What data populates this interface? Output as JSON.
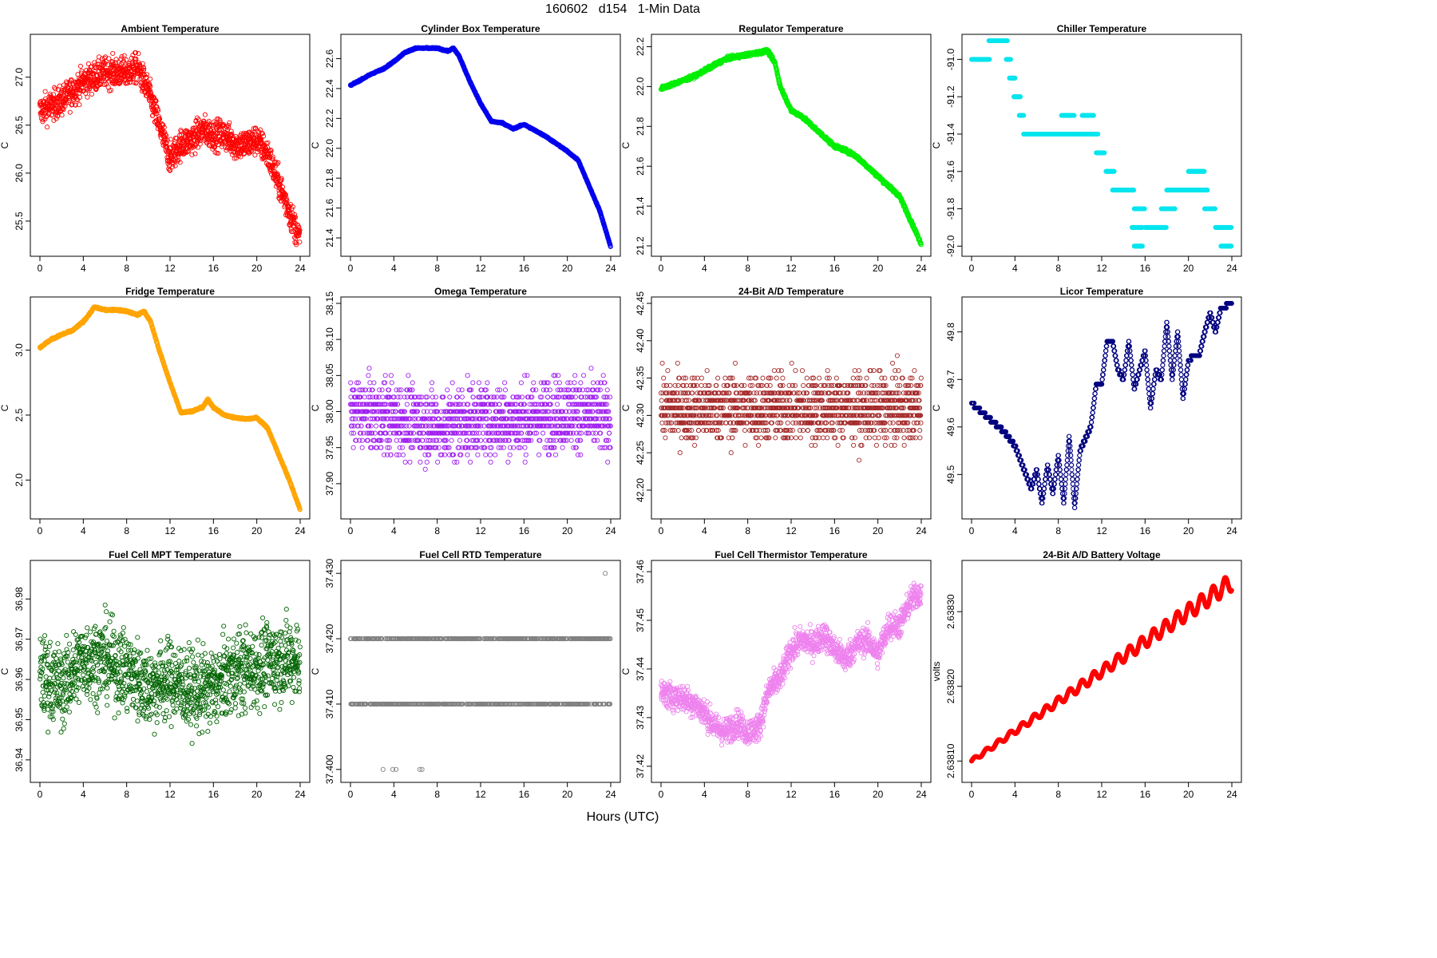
{
  "title": "160602   d154   1-Min Data",
  "xlabel": "Hours (UTC)",
  "chart_data": [
    {
      "id": "ambient",
      "type": "scatter",
      "title": "Ambient Temperature",
      "ylabel": "C",
      "color": "#ff0000",
      "xlim": [
        0,
        24
      ],
      "ylim": [
        25.2,
        27.38
      ],
      "xticks": [
        "0",
        "4",
        "8",
        "12",
        "16",
        "20",
        "24"
      ],
      "yticks": [
        "25.5",
        "26.0",
        "26.5",
        "27.0"
      ],
      "points_per_hour": 60,
      "noise": 0.14,
      "trend": [
        [
          0,
          26.65
        ],
        [
          2,
          26.75
        ],
        [
          4,
          26.95
        ],
        [
          6,
          27.05
        ],
        [
          8,
          27.05
        ],
        [
          9,
          27.1
        ],
        [
          10,
          26.85
        ],
        [
          11,
          26.5
        ],
        [
          12,
          26.15
        ],
        [
          13,
          26.3
        ],
        [
          14,
          26.35
        ],
        [
          15,
          26.45
        ],
        [
          16,
          26.4
        ],
        [
          17,
          26.4
        ],
        [
          18,
          26.3
        ],
        [
          19,
          26.3
        ],
        [
          20,
          26.35
        ],
        [
          21,
          26.2
        ],
        [
          22,
          25.9
        ],
        [
          23,
          25.6
        ],
        [
          24,
          25.3
        ]
      ]
    },
    {
      "id": "cylinder",
      "type": "scatter",
      "title": "Cylinder Box Temperature",
      "ylabel": "C",
      "color": "#0000ee",
      "xlim": [
        0,
        24
      ],
      "ylim": [
        21.32,
        22.72
      ],
      "xticks": [
        "0",
        "4",
        "8",
        "12",
        "16",
        "20",
        "24"
      ],
      "yticks": [
        "21.4",
        "21.6",
        "21.8",
        "22.0",
        "22.2",
        "22.4",
        "22.6"
      ],
      "points_per_hour": 60,
      "noise": 0.004,
      "trend": [
        [
          0,
          22.42
        ],
        [
          1,
          22.46
        ],
        [
          2,
          22.5
        ],
        [
          3,
          22.53
        ],
        [
          4,
          22.58
        ],
        [
          5,
          22.64
        ],
        [
          6,
          22.67
        ],
        [
          7,
          22.67
        ],
        [
          8,
          22.67
        ],
        [
          9,
          22.65
        ],
        [
          9.5,
          22.67
        ],
        [
          10,
          22.62
        ],
        [
          11,
          22.45
        ],
        [
          12,
          22.3
        ],
        [
          13,
          22.18
        ],
        [
          14,
          22.17
        ],
        [
          15,
          22.13
        ],
        [
          16,
          22.16
        ],
        [
          17,
          22.12
        ],
        [
          18,
          22.08
        ],
        [
          19,
          22.03
        ],
        [
          20,
          21.98
        ],
        [
          21,
          21.92
        ],
        [
          22,
          21.75
        ],
        [
          23,
          21.58
        ],
        [
          24,
          21.34
        ]
      ]
    },
    {
      "id": "regulator",
      "type": "scatter",
      "title": "Regulator Temperature",
      "ylabel": "C",
      "color": "#00ee00",
      "xlim": [
        0,
        24
      ],
      "ylim": [
        21.18,
        22.23
      ],
      "xticks": [
        "0",
        "4",
        "8",
        "12",
        "16",
        "20",
        "24"
      ],
      "yticks": [
        "21.2",
        "21.4",
        "21.6",
        "21.8",
        "22.0",
        "22.2"
      ],
      "points_per_hour": 60,
      "noise": 0.008,
      "trend": [
        [
          0,
          21.99
        ],
        [
          1,
          22.01
        ],
        [
          2,
          22.03
        ],
        [
          3,
          22.05
        ],
        [
          4,
          22.08
        ],
        [
          5,
          22.11
        ],
        [
          6,
          22.14
        ],
        [
          7,
          22.15
        ],
        [
          8,
          22.16
        ],
        [
          9,
          22.17
        ],
        [
          9.8,
          22.18
        ],
        [
          10.5,
          22.12
        ],
        [
          11,
          22.0
        ],
        [
          12,
          21.88
        ],
        [
          13,
          21.85
        ],
        [
          14,
          21.8
        ],
        [
          15,
          21.75
        ],
        [
          16,
          21.7
        ],
        [
          17,
          21.68
        ],
        [
          18,
          21.65
        ],
        [
          19,
          21.6
        ],
        [
          20,
          21.55
        ],
        [
          21,
          21.5
        ],
        [
          22,
          21.45
        ],
        [
          23,
          21.33
        ],
        [
          24,
          21.21
        ]
      ]
    },
    {
      "id": "chiller",
      "type": "steps",
      "title": "Chiller Temperature",
      "ylabel": "C",
      "color": "#00e5ee",
      "xlim": [
        0,
        24
      ],
      "ylim": [
        -92.02,
        -90.9
      ],
      "xticks": [
        "0",
        "4",
        "8",
        "12",
        "16",
        "20",
        "24"
      ],
      "yticks": [
        "-91.0",
        "-91.2",
        "-91.4",
        "-91.6",
        "-91.8",
        "-92.0"
      ],
      "segments": [
        [
          0,
          1.7,
          -91.0
        ],
        [
          1.6,
          3.3,
          -90.9
        ],
        [
          3.2,
          3.6,
          -91.0
        ],
        [
          3.5,
          4.0,
          -91.1
        ],
        [
          3.9,
          4.5,
          -91.2
        ],
        [
          4.4,
          4.8,
          -91.3
        ],
        [
          4.8,
          11.7,
          -91.4
        ],
        [
          8.3,
          9.5,
          -91.3
        ],
        [
          10.2,
          11.3,
          -91.3
        ],
        [
          11.5,
          12.3,
          -91.5
        ],
        [
          12.4,
          13.2,
          -91.6
        ],
        [
          13.0,
          15.0,
          -91.7
        ],
        [
          15.0,
          16.0,
          -91.8
        ],
        [
          14.8,
          15.8,
          -91.9
        ],
        [
          16.0,
          18.0,
          -91.9
        ],
        [
          17.5,
          18.8,
          -91.8
        ],
        [
          18.0,
          21.8,
          -91.7
        ],
        [
          20.0,
          21.5,
          -91.6
        ],
        [
          21.5,
          22.5,
          -91.8
        ],
        [
          22.5,
          24.0,
          -91.9
        ],
        [
          23.0,
          24.0,
          -92.0
        ],
        [
          15.0,
          15.8,
          -92.0
        ]
      ]
    },
    {
      "id": "fridge",
      "type": "scatter",
      "title": "Fridge Temperature",
      "ylabel": "C",
      "color": "#ffa500",
      "xlim": [
        0,
        24
      ],
      "ylim": [
        1.75,
        3.36
      ],
      "xticks": [
        "0",
        "4",
        "8",
        "12",
        "16",
        "20",
        "24"
      ],
      "yticks": [
        "2.0",
        "2.5",
        "3.0"
      ],
      "points_per_hour": 60,
      "noise": 0.006,
      "trend": [
        [
          0,
          3.02
        ],
        [
          1,
          3.08
        ],
        [
          2,
          3.12
        ],
        [
          3,
          3.15
        ],
        [
          4,
          3.22
        ],
        [
          4.5,
          3.27
        ],
        [
          5,
          3.33
        ],
        [
          6,
          3.31
        ],
        [
          7,
          3.31
        ],
        [
          8,
          3.3
        ],
        [
          9,
          3.27
        ],
        [
          9.6,
          3.3
        ],
        [
          10.2,
          3.22
        ],
        [
          11,
          3.0
        ],
        [
          12,
          2.75
        ],
        [
          13,
          2.52
        ],
        [
          14,
          2.53
        ],
        [
          15,
          2.56
        ],
        [
          15.5,
          2.62
        ],
        [
          16,
          2.56
        ],
        [
          17,
          2.5
        ],
        [
          18,
          2.48
        ],
        [
          19,
          2.47
        ],
        [
          20,
          2.48
        ],
        [
          21,
          2.4
        ],
        [
          22,
          2.2
        ],
        [
          23,
          2.0
        ],
        [
          24,
          1.77
        ]
      ]
    },
    {
      "id": "omega",
      "type": "quantized",
      "title": "Omega Temperature",
      "ylabel": "C",
      "color": "#a020f0",
      "xlim": [
        0,
        24
      ],
      "ylim": [
        37.86,
        38.15
      ],
      "xticks": [
        "0",
        "4",
        "8",
        "12",
        "16",
        "20",
        "24"
      ],
      "yticks": [
        "37.90",
        "37.95",
        "38.00",
        "38.05",
        "38.10",
        "38.15"
      ],
      "points_per_hour": 60,
      "step": 0.01,
      "noise": 0.045,
      "trend": [
        [
          0,
          38.0
        ],
        [
          4,
          37.99
        ],
        [
          8,
          37.98
        ],
        [
          12,
          37.99
        ],
        [
          16,
          37.99
        ],
        [
          20,
          38.0
        ],
        [
          24,
          37.99
        ]
      ]
    },
    {
      "id": "ad24",
      "type": "quantized",
      "title": "24-Bit A/D Temperature",
      "ylabel": "C",
      "color": "#a52a2a",
      "xlim": [
        0,
        24
      ],
      "ylim": [
        42.17,
        42.45
      ],
      "xticks": [
        "0",
        "4",
        "8",
        "12",
        "16",
        "20",
        "24"
      ],
      "yticks": [
        "42.20",
        "42.25",
        "42.30",
        "42.35",
        "42.40",
        "42.45"
      ],
      "points_per_hour": 60,
      "step": 0.01,
      "noise": 0.04,
      "trend": [
        [
          0,
          42.31
        ],
        [
          12,
          42.31
        ],
        [
          24,
          42.31
        ]
      ]
    },
    {
      "id": "licor",
      "type": "quantized",
      "title": "Licor Temperature",
      "ylabel": "C",
      "color": "#000080",
      "xlim": [
        0,
        24
      ],
      "ylim": [
        49.42,
        49.86
      ],
      "xticks": [
        "0",
        "4",
        "8",
        "12",
        "16",
        "20",
        "24"
      ],
      "yticks": [
        "49.5",
        "49.6",
        "49.7",
        "49.8"
      ],
      "points_per_hour": 60,
      "step": 0.01,
      "noise": 0.0,
      "trend": [
        [
          0,
          49.65
        ],
        [
          1,
          49.63
        ],
        [
          2,
          49.61
        ],
        [
          3,
          49.59
        ],
        [
          4,
          49.56
        ],
        [
          5,
          49.5
        ],
        [
          5.5,
          49.47
        ],
        [
          6,
          49.51
        ],
        [
          6.5,
          49.44
        ],
        [
          7,
          49.52
        ],
        [
          7.5,
          49.46
        ],
        [
          8,
          49.54
        ],
        [
          8.5,
          49.44
        ],
        [
          9,
          49.58
        ],
        [
          9.5,
          49.43
        ],
        [
          10,
          49.55
        ],
        [
          11,
          49.6
        ],
        [
          11.5,
          49.69
        ],
        [
          12,
          49.69
        ],
        [
          12.5,
          49.78
        ],
        [
          13,
          49.78
        ],
        [
          13.5,
          49.72
        ],
        [
          14,
          49.7
        ],
        [
          14.5,
          49.78
        ],
        [
          15,
          49.68
        ],
        [
          16,
          49.76
        ],
        [
          16.5,
          49.64
        ],
        [
          17,
          49.72
        ],
        [
          17.5,
          49.7
        ],
        [
          18,
          49.82
        ],
        [
          18.5,
          49.7
        ],
        [
          19,
          49.8
        ],
        [
          19.5,
          49.66
        ],
        [
          20,
          49.74
        ],
        [
          20.5,
          49.75
        ],
        [
          21,
          49.75
        ],
        [
          21.5,
          49.8
        ],
        [
          22,
          49.84
        ],
        [
          22.5,
          49.8
        ],
        [
          23,
          49.85
        ],
        [
          24,
          49.86
        ]
      ]
    },
    {
      "id": "fc-mpt",
      "type": "scatter",
      "title": "Fuel Cell MPT Temperature",
      "ylabel": "C",
      "color": "#006400",
      "xlim": [
        0,
        24
      ],
      "ylim": [
        36.936,
        36.988
      ],
      "xticks": [
        "0",
        "4",
        "8",
        "12",
        "16",
        "20",
        "24"
      ],
      "yticks": [
        "36.94",
        "36.95",
        "36.96",
        "36.97",
        "36.98"
      ],
      "points_per_hour": 60,
      "noise": 0.009,
      "trend": [
        [
          0,
          36.961
        ],
        [
          2,
          36.958
        ],
        [
          4,
          36.965
        ],
        [
          6,
          36.965
        ],
        [
          8,
          36.962
        ],
        [
          10,
          36.958
        ],
        [
          12,
          36.96
        ],
        [
          14,
          36.957
        ],
        [
          16,
          36.958
        ],
        [
          18,
          36.962
        ],
        [
          20,
          36.963
        ],
        [
          22,
          36.965
        ],
        [
          24,
          36.965
        ]
      ]
    },
    {
      "id": "fc-rtd",
      "type": "levels",
      "title": "Fuel Cell RTD Temperature",
      "ylabel": "C",
      "color": "#808080",
      "xlim": [
        0,
        24
      ],
      "ylim": [
        37.399,
        37.431
      ],
      "xticks": [
        "0",
        "4",
        "8",
        "12",
        "16",
        "20",
        "24"
      ],
      "yticks": [
        "37.400",
        "37.410",
        "37.420",
        "37.430"
      ],
      "levels": [
        37.42,
        37.41
      ],
      "outliers": [
        [
          3.0,
          37.4
        ],
        [
          3.9,
          37.4
        ],
        [
          4.2,
          37.4
        ],
        [
          6.4,
          37.4
        ],
        [
          6.6,
          37.4
        ],
        [
          23.5,
          37.43
        ]
      ]
    },
    {
      "id": "fc-therm",
      "type": "scatter",
      "title": "Fuel Cell Thermistor Temperature",
      "ylabel": "C",
      "color": "#ee82ee",
      "xlim": [
        0,
        24
      ],
      "ylim": [
        37.418,
        37.461
      ],
      "xticks": [
        "0",
        "4",
        "8",
        "12",
        "16",
        "20",
        "24"
      ],
      "yticks": [
        "37.42",
        "37.43",
        "37.44",
        "37.45",
        "37.46"
      ],
      "points_per_hour": 60,
      "noise": 0.0025,
      "trend": [
        [
          0,
          37.435
        ],
        [
          2,
          37.434
        ],
        [
          3,
          37.433
        ],
        [
          4,
          37.431
        ],
        [
          5,
          37.428
        ],
        [
          6,
          37.427
        ],
        [
          7,
          37.429
        ],
        [
          8,
          37.427
        ],
        [
          9,
          37.428
        ],
        [
          10,
          37.436
        ],
        [
          11,
          37.438
        ],
        [
          12,
          37.444
        ],
        [
          13,
          37.446
        ],
        [
          14,
          37.445
        ],
        [
          15,
          37.447
        ],
        [
          16,
          37.444
        ],
        [
          17,
          37.442
        ],
        [
          18,
          37.445
        ],
        [
          19,
          37.446
        ],
        [
          20,
          37.443
        ],
        [
          21,
          37.449
        ],
        [
          22,
          37.449
        ],
        [
          23,
          37.454
        ],
        [
          24,
          37.456
        ]
      ]
    },
    {
      "id": "battery",
      "type": "wave",
      "title": "24-Bit A/D Battery Voltage",
      "ylabel": "volts",
      "color": "#ff0000",
      "xlim": [
        0,
        24
      ],
      "ylim": [
        2.63808,
        2.63836
      ],
      "xticks": [
        "0",
        "4",
        "8",
        "12",
        "16",
        "20",
        "24"
      ],
      "yticks": [
        "2.63810",
        "2.63820",
        "2.63830"
      ],
      "points_per_hour": 60,
      "start": 2.6381,
      "end": 2.63834,
      "period_hours": 1.1,
      "amplitude": 1.2e-05
    }
  ]
}
